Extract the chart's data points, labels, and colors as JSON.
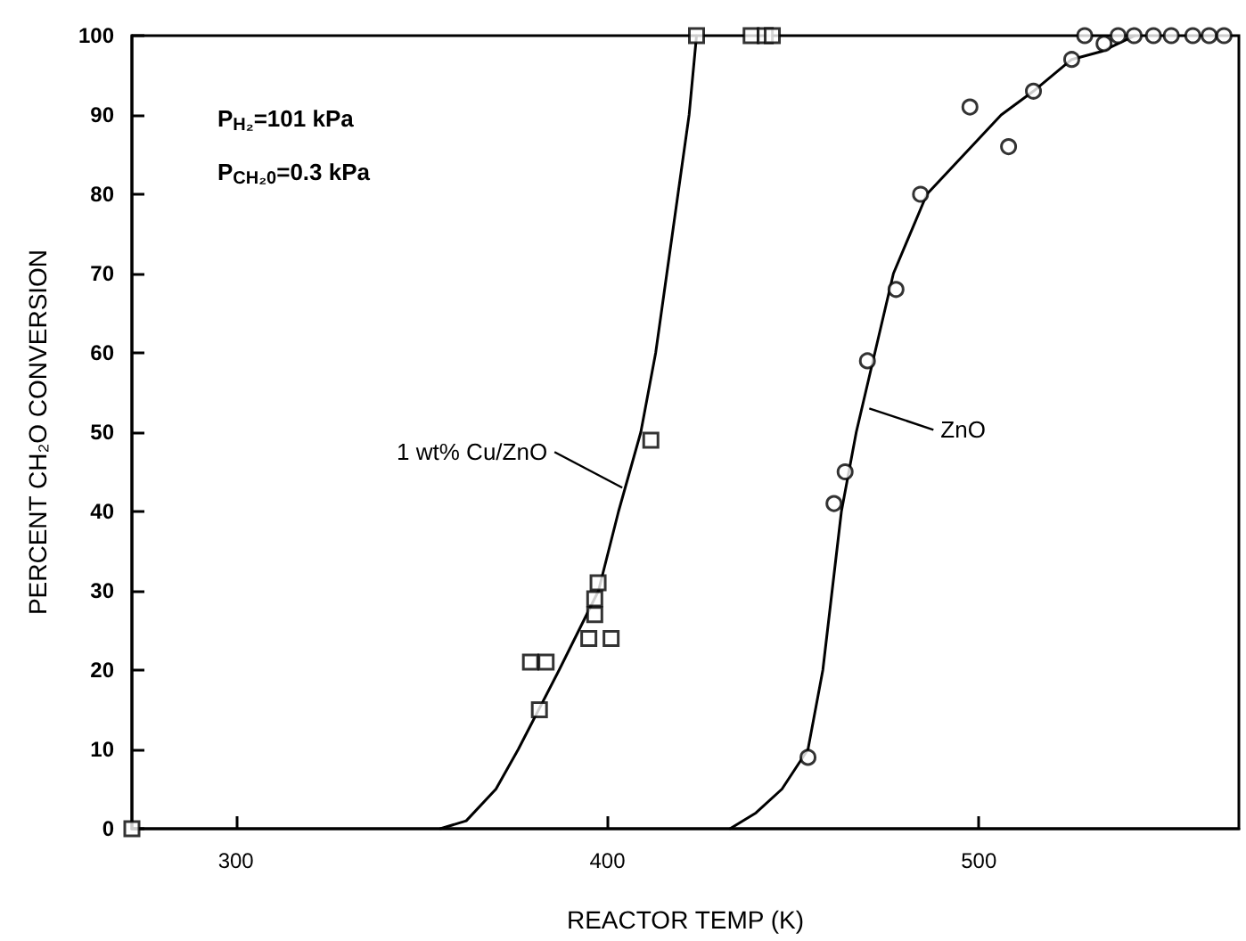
{
  "chart_data": {
    "type": "scatter",
    "xlabel": "REACTOR TEMP (K)",
    "ylabel": "PERCENT CH₂O CONVERSION",
    "xlim": [
      272,
      570
    ],
    "xticks": [
      300,
      400,
      500
    ],
    "ylim": [
      0,
      100
    ],
    "yticks": [
      0,
      10,
      20,
      30,
      40,
      50,
      60,
      70,
      80,
      90,
      100
    ],
    "grid": false,
    "series": [
      {
        "marker": "square",
        "color": "#000000",
        "x": [
          272,
          381.7,
          379.3,
          383.5,
          395,
          401,
          396.6,
          396.6,
          397.5,
          411.7,
          424,
          438.7,
          442.5,
          444.4
        ],
        "values": [
          0,
          15,
          21,
          21,
          24,
          24,
          27,
          29,
          31,
          49,
          100,
          100,
          100,
          100
        ]
      },
      {
        "type": "line",
        "marker": "none",
        "line_style": "solid",
        "color": "#000000",
        "x": [
          355,
          362,
          370,
          376,
          387,
          397.6,
          403,
          409,
          413,
          416,
          419,
          422,
          424
        ],
        "values": [
          0,
          1,
          5,
          10,
          20,
          30,
          40,
          50,
          60,
          70,
          80,
          90,
          100
        ]
      },
      {
        "marker": "circle",
        "color": "#000000",
        "x": [
          454,
          461,
          464,
          470,
          477.7,
          484.3,
          497.6,
          508,
          514.7,
          525,
          528.5,
          533.7,
          537.5,
          541.8,
          547,
          551.8,
          557.6,
          562,
          566
        ],
        "values": [
          9,
          41,
          45,
          59,
          68,
          80,
          91,
          86,
          93,
          97,
          100,
          99,
          100,
          100,
          100,
          100,
          100,
          100,
          100
        ]
      },
      {
        "type": "line",
        "marker": "none",
        "line_style": "solid",
        "color": "#000000",
        "x": [
          433,
          440,
          447,
          454,
          458,
          463,
          467,
          472,
          477,
          486,
          506,
          514.7,
          525,
          533,
          542
        ],
        "values": [
          0,
          2,
          5,
          10,
          20,
          40,
          50,
          60,
          70,
          80,
          90,
          93,
          97,
          98,
          100
        ]
      }
    ],
    "annotations": [
      "P$_{H₂}$=101 kPa",
      "P$_{CH₂0}$=0.3 kPa",
      {
        "text": "1 wt% Cu/ZnO",
        "x": 404,
        "y": 43
      },
      {
        "text": "ZnO",
        "x": 470.5,
        "y": 53
      }
    ]
  }
}
